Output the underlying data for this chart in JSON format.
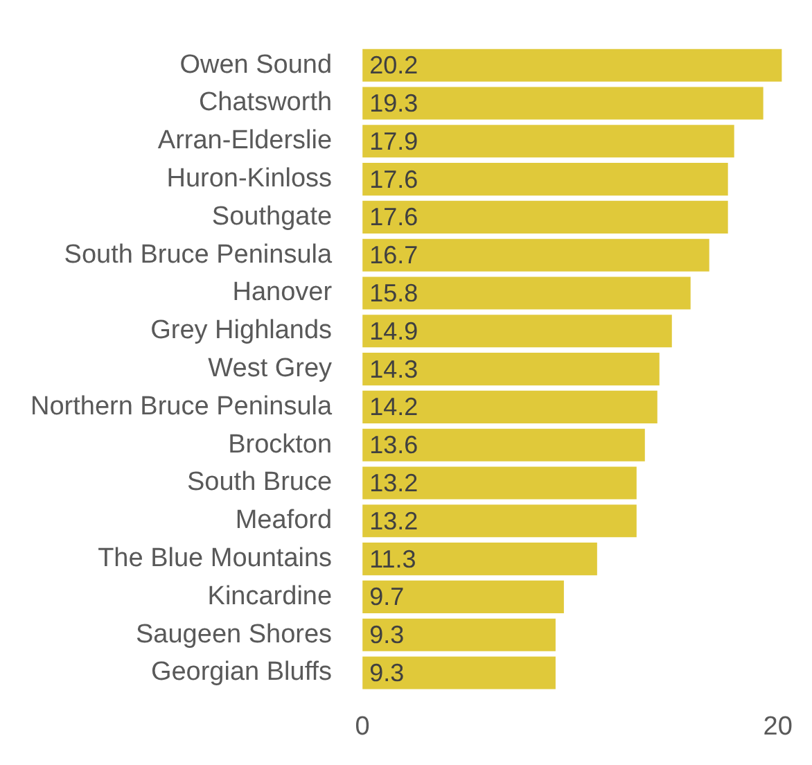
{
  "chart_data": {
    "type": "bar",
    "orientation": "horizontal",
    "categories": [
      "Owen Sound",
      "Chatsworth",
      "Arran-Elderslie",
      "Huron-Kinloss",
      "Southgate",
      "South Bruce Peninsula",
      "Hanover",
      "Grey Highlands",
      "West Grey",
      "Northern Bruce Peninsula",
      "Brockton",
      "South Bruce",
      "Meaford",
      "The Blue Mountains",
      "Kincardine",
      "Saugeen Shores",
      "Georgian Bluffs"
    ],
    "values": [
      20.2,
      19.3,
      17.9,
      17.6,
      17.6,
      16.7,
      15.8,
      14.9,
      14.3,
      14.2,
      13.6,
      13.2,
      13.2,
      11.3,
      9.7,
      9.3,
      9.3
    ],
    "color": "#e0c93a",
    "xlim": [
      0,
      20.2
    ],
    "xticks": [
      0,
      20
    ],
    "data_labels": true,
    "grid": false,
    "legend": false
  }
}
